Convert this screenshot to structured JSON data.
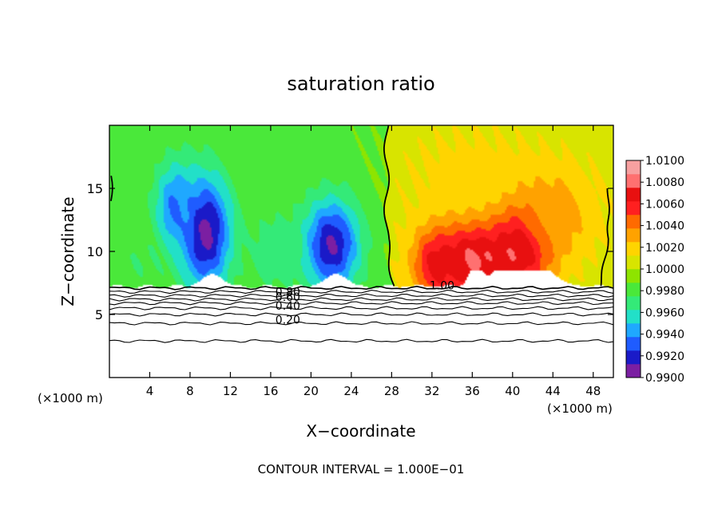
{
  "chart_data": {
    "type": "heatmap",
    "title": "saturation ratio",
    "xlabel": "X−coordinate",
    "ylabel": "Z−coordinate",
    "xlim": [
      0,
      50
    ],
    "ylim": [
      0,
      20
    ],
    "x_ticks": [
      4,
      8,
      12,
      16,
      20,
      24,
      28,
      32,
      36,
      40,
      44,
      48
    ],
    "y_ticks": [
      5,
      10,
      15
    ],
    "x_unit_label_left": "(×1000 m)",
    "x_unit_label_right": "(×1000 m)",
    "footer": "CONTOUR INTERVAL = 1.000E−01",
    "grid": false,
    "colorbar": {
      "placement": "right",
      "min": 0.99,
      "max": 1.01,
      "tick_labels": [
        "1.0100",
        "1.0080",
        "1.0060",
        "1.0040",
        "1.0020",
        "1.0000",
        "0.9980",
        "0.9960",
        "0.9940",
        "0.9920",
        "0.9900"
      ],
      "colors": [
        "#7b1fa2",
        "#1a1ac8",
        "#1f5cff",
        "#1fa8ff",
        "#22e0c8",
        "#34ea78",
        "#4ae83a",
        "#8ee400",
        "#d8e400",
        "#ffd400",
        "#ffa200",
        "#ff6a00",
        "#ff2020",
        "#e81010",
        "#ff7070",
        "#f7a0a0"
      ]
    },
    "contour_labels": [
      {
        "text": "0.80",
        "x": 17.7,
        "z": 6.8
      },
      {
        "text": "0.60",
        "x": 17.7,
        "z": 6.4
      },
      {
        "text": "0.40",
        "x": 17.7,
        "z": 5.7
      },
      {
        "text": "0.20",
        "x": 17.7,
        "z": 4.6
      },
      {
        "text": "1.00",
        "x": 33.0,
        "z": 7.3
      }
    ],
    "contour_levels_below": [
      {
        "z": 7.1
      },
      {
        "z": 6.8
      },
      {
        "z": 6.5
      },
      {
        "z": 6.2
      },
      {
        "z": 5.9
      },
      {
        "z": 5.5
      },
      {
        "z": 5.0
      },
      {
        "z": 4.3
      },
      {
        "z": 2.9
      }
    ],
    "cloud_base_z": 7.2,
    "field_regions": [
      {
        "x": 9.5,
        "z": 11.5,
        "sx": 2.6,
        "sz": 4.5,
        "value": 0.9905
      },
      {
        "x": 6.5,
        "z": 13.5,
        "sx": 2.0,
        "sz": 3.5,
        "value": 0.9935
      },
      {
        "x": 22.0,
        "z": 10.5,
        "sx": 2.8,
        "sz": 3.6,
        "value": 0.991
      },
      {
        "x": 16.5,
        "z": 10.0,
        "sx": 2.5,
        "sz": 3.0,
        "value": 0.9965
      },
      {
        "x": 3.0,
        "z": 9.0,
        "sx": 2.5,
        "sz": 2.0,
        "value": 0.9975
      },
      {
        "x": 36.0,
        "z": 9.5,
        "sx": 4.5,
        "sz": 3.5,
        "value": 1.008
      },
      {
        "x": 41.0,
        "z": 11.0,
        "sx": 3.0,
        "sz": 3.5,
        "value": 1.0095
      },
      {
        "x": 32.5,
        "z": 9.0,
        "sx": 2.0,
        "sz": 2.5,
        "value": 1.007
      },
      {
        "x": 44.0,
        "z": 13.0,
        "sx": 4.0,
        "sz": 3.5,
        "value": 1.0035
      },
      {
        "x": 36.0,
        "z": 16.0,
        "sx": 6.0,
        "sz": 3.5,
        "value": 1.0018
      }
    ]
  }
}
